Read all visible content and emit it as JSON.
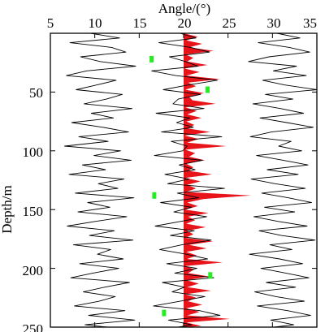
{
  "chart_data": {
    "type": "line",
    "title": "",
    "xlabel": "Angle/(°)",
    "ylabel": "Depth/m",
    "xlim": [
      5,
      35
    ],
    "ylim": [
      250,
      0
    ],
    "x_axis_position": "top",
    "xticks": [
      "5",
      "10",
      "15",
      "20",
      "25",
      "30",
      "35"
    ],
    "yticks": [
      "50",
      "100",
      "150",
      "200",
      "250"
    ],
    "grid": false,
    "legend": "none",
    "colors": {
      "trace": "#000000",
      "fill": "#e8141a",
      "marker": "#22ee22",
      "frame": "#000000"
    },
    "series": [
      {
        "role": "left-trace",
        "depth": [
          0,
          4,
          8,
          12,
          16,
          20,
          24,
          28,
          32,
          36,
          40,
          44,
          48,
          52,
          56,
          60,
          64,
          68,
          72,
          76,
          80,
          84,
          88,
          92,
          96,
          100,
          104,
          108,
          112,
          116,
          120,
          124,
          128,
          132,
          136,
          140,
          144,
          148,
          152,
          156,
          160,
          164,
          168,
          172,
          176,
          180,
          184,
          188,
          192,
          196,
          200,
          204,
          208,
          212,
          216,
          220,
          224,
          228,
          232,
          236,
          240,
          244,
          248,
          250
        ],
        "angle": [
          9.5,
          12.8,
          7.2,
          11.9,
          13.5,
          8.4,
          10.6,
          14.6,
          9.1,
          6.8,
          12.4,
          10.2,
          7.9,
          13.1,
          11.3,
          8.8,
          14.2,
          9.6,
          12.1,
          7.4,
          10.9,
          13.8,
          8.2,
          11.5,
          6.6,
          12.9,
          9.9,
          14.1,
          8.6,
          11.2,
          7.1,
          13.3,
          10.4,
          12.6,
          7.8,
          14.4,
          9.2,
          11.7,
          8.1,
          13.6,
          10.1,
          6.9,
          12.2,
          9.4,
          14.3,
          7.6,
          11.8,
          10.3,
          13.2,
          8.3,
          12.7,
          9.8,
          7.3,
          13.9,
          11.1,
          8.7,
          12.3,
          10.5,
          7.7,
          13.4,
          9.3,
          14.5,
          8.9,
          11.4
        ]
      },
      {
        "role": "middle-trace",
        "depth": [
          0,
          4,
          8,
          12,
          16,
          20,
          24,
          28,
          32,
          36,
          40,
          44,
          48,
          52,
          56,
          60,
          64,
          68,
          72,
          76,
          80,
          84,
          88,
          92,
          96,
          100,
          104,
          108,
          112,
          116,
          120,
          124,
          128,
          132,
          136,
          140,
          144,
          148,
          152,
          156,
          160,
          164,
          168,
          172,
          176,
          180,
          184,
          188,
          192,
          196,
          200,
          204,
          208,
          212,
          216,
          220,
          224,
          228,
          232,
          236,
          240,
          244,
          248,
          250
        ],
        "angle": [
          19.6,
          21.4,
          17.2,
          20.8,
          22.9,
          18.4,
          20.2,
          21.6,
          16.4,
          19.1,
          23.8,
          20.5,
          17.7,
          21.9,
          19.4,
          18.8,
          22.3,
          16.9,
          20.7,
          19.2,
          21.1,
          17.5,
          24.3,
          18.6,
          20.4,
          19.9,
          16.7,
          22.1,
          19.5,
          21.3,
          17.9,
          20.6,
          18.2,
          24.6,
          19.3,
          21.7,
          17.4,
          20.9,
          18.9,
          22.6,
          19.7,
          16.8,
          21.2,
          18.5,
          23.1,
          19.8,
          17.3,
          20.3,
          22.7,
          18.1,
          21.5,
          19.0,
          23.4,
          17.6,
          20.1,
          18.7,
          22.4,
          19.6,
          16.6,
          21.8,
          24.1,
          18.3,
          20.9,
          19.4
        ]
      },
      {
        "role": "right-trace",
        "depth": [
          0,
          4,
          8,
          12,
          16,
          20,
          24,
          28,
          32,
          36,
          40,
          44,
          48,
          52,
          56,
          60,
          64,
          68,
          72,
          76,
          80,
          84,
          88,
          92,
          96,
          100,
          104,
          108,
          112,
          116,
          120,
          124,
          128,
          132,
          136,
          140,
          144,
          148,
          152,
          156,
          160,
          164,
          168,
          172,
          176,
          180,
          184,
          188,
          192,
          196,
          200,
          204,
          208,
          212,
          216,
          220,
          224,
          228,
          232,
          236,
          240,
          244,
          248,
          250
        ],
        "angle": [
          30.5,
          33.1,
          28.4,
          31.9,
          34.2,
          29.6,
          27.3,
          32.7,
          30.1,
          33.8,
          28.9,
          31.4,
          35.0,
          29.2,
          32.3,
          27.8,
          30.9,
          33.5,
          28.6,
          31.6,
          34.6,
          29.9,
          27.5,
          32.1,
          30.7,
          33.3,
          28.2,
          31.2,
          34.0,
          29.4,
          32.9,
          27.6,
          30.3,
          33.7,
          28.8,
          31.8,
          34.4,
          29.1,
          32.5,
          27.9,
          30.6,
          33.9,
          28.5,
          31.0,
          34.8,
          29.7,
          32.2,
          27.4,
          30.8,
          33.4,
          28.7,
          31.5,
          34.1,
          29.3,
          32.6,
          28.0,
          30.4,
          33.6,
          28.3,
          31.7,
          34.3,
          29.8,
          32.4,
          30.2
        ]
      }
    ],
    "fill_band": {
      "baseline": 20,
      "depth": [
        0,
        3,
        6,
        9,
        12,
        15,
        18,
        21,
        24,
        27,
        30,
        33,
        36,
        39,
        42,
        45,
        48,
        51,
        54,
        57,
        60,
        63,
        66,
        69,
        72,
        75,
        78,
        81,
        84,
        87,
        90,
        93,
        96,
        99,
        102,
        105,
        108,
        111,
        114,
        117,
        120,
        123,
        126,
        129,
        132,
        135,
        138,
        141,
        144,
        147,
        150,
        153,
        156,
        159,
        162,
        165,
        168,
        171,
        174,
        177,
        180,
        183,
        186,
        189,
        192,
        195,
        198,
        201,
        204,
        207,
        210,
        213,
        216,
        219,
        222,
        225,
        228,
        231,
        234,
        237,
        240,
        243,
        246,
        249,
        250
      ],
      "angle": [
        20,
        21.6,
        20.3,
        22.1,
        20.6,
        23.4,
        20.2,
        21.1,
        20.4,
        22.7,
        20.1,
        21.8,
        20.3,
        24.1,
        20.5,
        21.4,
        20.2,
        22.3,
        20.6,
        21.0,
        23.6,
        20.2,
        21.5,
        20.4,
        22.0,
        20.3,
        21.2,
        20.5,
        23.0,
        20.1,
        21.7,
        20.4,
        24.8,
        20.2,
        21.3,
        20.6,
        22.4,
        20.3,
        21.1,
        20.5,
        23.2,
        20.2,
        21.9,
        20.4,
        21.4,
        20.3,
        27.6,
        22.2,
        20.4,
        21.6,
        20.2,
        22.8,
        20.5,
        21.3,
        20.3,
        22.5,
        20.4,
        21.1,
        20.2,
        23.3,
        20.6,
        22.6,
        20.3,
        21.5,
        20.4,
        24.4,
        20.2,
        21.2,
        20.5,
        22.9,
        20.3,
        21.7,
        20.4,
        23.1,
        20.2,
        21.4,
        20.5,
        22.1,
        20.3,
        21.8,
        20.4,
        25.2,
        20.3,
        22.0,
        20.2
      ]
    },
    "markers": [
      {
        "angle": 16.4,
        "depth": 22
      },
      {
        "angle": 22.7,
        "depth": 48
      },
      {
        "angle": 16.7,
        "depth": 138
      },
      {
        "angle": 23.0,
        "depth": 206
      },
      {
        "angle": 17.8,
        "depth": 238
      }
    ]
  }
}
